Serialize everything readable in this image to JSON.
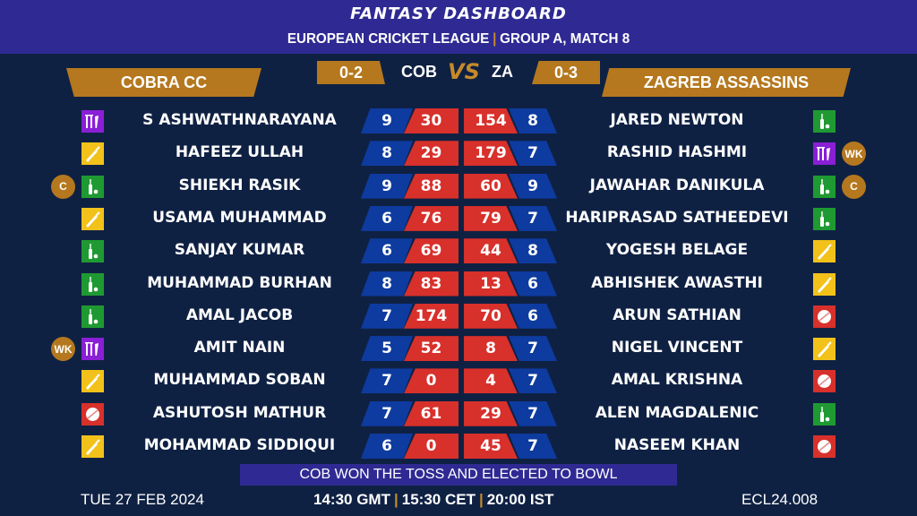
{
  "header": {
    "title": "FANTASY DASHBOARD",
    "league": "EUROPEAN CRICKET LEAGUE",
    "match": "GROUP A, MATCH 8"
  },
  "colors": {
    "header": "#2f2a93",
    "gold": "#b5781e",
    "blue": "#0e3b9f",
    "red": "#d8302b",
    "background": "#0f2143",
    "wk": "#8a1fd6",
    "bat": "#f2c21b",
    "ar": "#1f9a32",
    "bowl": "#d8302b"
  },
  "team_left": {
    "name": "COBRA CC",
    "abbr": "COB",
    "record": "0-2"
  },
  "team_right": {
    "name": "ZAGREB ASSASSINS",
    "abbr": "ZA",
    "record": "0-3"
  },
  "vs": "VS",
  "players_left": [
    {
      "name": "S ASHWATHNARAYANA",
      "role": "wk",
      "badge": "",
      "a": "9",
      "b": "30"
    },
    {
      "name": "HAFEEZ ULLAH",
      "role": "bat",
      "badge": "",
      "a": "8",
      "b": "29"
    },
    {
      "name": "SHIEKH RASIK",
      "role": "ar",
      "badge": "C",
      "a": "9",
      "b": "88"
    },
    {
      "name": "USAMA MUHAMMAD",
      "role": "bat",
      "badge": "",
      "a": "6",
      "b": "76"
    },
    {
      "name": "SANJAY KUMAR",
      "role": "ar",
      "badge": "",
      "a": "6",
      "b": "69"
    },
    {
      "name": "MUHAMMAD BURHAN",
      "role": "ar",
      "badge": "",
      "a": "8",
      "b": "83"
    },
    {
      "name": "AMAL JACOB",
      "role": "ar",
      "badge": "",
      "a": "7",
      "b": "174"
    },
    {
      "name": "AMIT NAIN",
      "role": "wk",
      "badge": "WK",
      "a": "5",
      "b": "52"
    },
    {
      "name": "MUHAMMAD SOBAN",
      "role": "bat",
      "badge": "",
      "a": "7",
      "b": "0"
    },
    {
      "name": "ASHUTOSH MATHUR",
      "role": "bowl",
      "badge": "",
      "a": "7",
      "b": "61"
    },
    {
      "name": "MOHAMMAD SIDDIQUI",
      "role": "bat",
      "badge": "",
      "a": "6",
      "b": "0"
    }
  ],
  "players_right": [
    {
      "name": "JARED NEWTON",
      "role": "ar",
      "badge": "",
      "b": "154",
      "a": "8"
    },
    {
      "name": "RASHID HASHMI",
      "role": "wk",
      "badge": "WK",
      "b": "179",
      "a": "7"
    },
    {
      "name": "JAWAHAR DANIKULA",
      "role": "ar",
      "badge": "C",
      "b": "60",
      "a": "9"
    },
    {
      "name": "HARIPRASAD SATHEEDEVI",
      "role": "ar",
      "badge": "",
      "b": "79",
      "a": "7"
    },
    {
      "name": "YOGESH BELAGE",
      "role": "bat",
      "badge": "",
      "b": "44",
      "a": "8"
    },
    {
      "name": "ABHISHEK AWASTHI",
      "role": "bat",
      "badge": "",
      "b": "13",
      "a": "6"
    },
    {
      "name": "ARUN SATHIAN",
      "role": "bowl",
      "badge": "",
      "b": "70",
      "a": "6"
    },
    {
      "name": "NIGEL VINCENT",
      "role": "bat",
      "badge": "",
      "b": "8",
      "a": "7"
    },
    {
      "name": "AMAL KRISHNA",
      "role": "bowl",
      "badge": "",
      "b": "4",
      "a": "7"
    },
    {
      "name": "ALEN MAGDALENIC",
      "role": "ar",
      "badge": "",
      "b": "29",
      "a": "7"
    },
    {
      "name": "NASEEM KHAN",
      "role": "bowl",
      "badge": "",
      "b": "45",
      "a": "7"
    }
  ],
  "toss": "COB WON THE TOSS AND ELECTED TO BOWL",
  "footer": {
    "date": "TUE 27 FEB 2024",
    "gmt": "14:30 GMT",
    "cet": "15:30 CET",
    "ist": "20:00 IST",
    "code": "ECL24.008"
  }
}
